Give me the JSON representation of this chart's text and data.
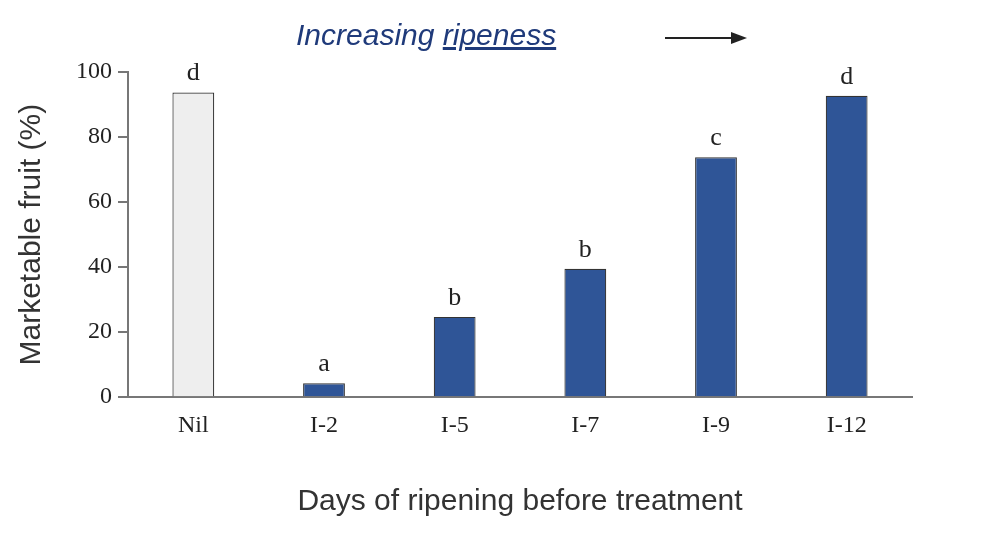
{
  "chart_data": {
    "type": "bar",
    "xlabel": "Days of ripening before treatment",
    "ylabel": "Marketable fruit (%)",
    "annotations": [
      "Increasing ripeness"
    ],
    "categories": [
      "Nil",
      "I-2",
      "I-5",
      "I-7",
      "I-9",
      "I-12"
    ],
    "values": [
      93.7,
      4.3,
      24.7,
      39.5,
      73.8,
      92.7
    ],
    "colors": [
      "#eeeeee",
      "#2f5597",
      "#2f5597",
      "#2f5597",
      "#2f5597",
      "#2f5597"
    ],
    "value_labels": [
      "d",
      "a",
      "b",
      "b",
      "c",
      "d"
    ],
    "ylim": [
      0,
      100
    ],
    "yticks": [
      0,
      20,
      40,
      60,
      80,
      100
    ],
    "grid": false,
    "legend": false
  }
}
